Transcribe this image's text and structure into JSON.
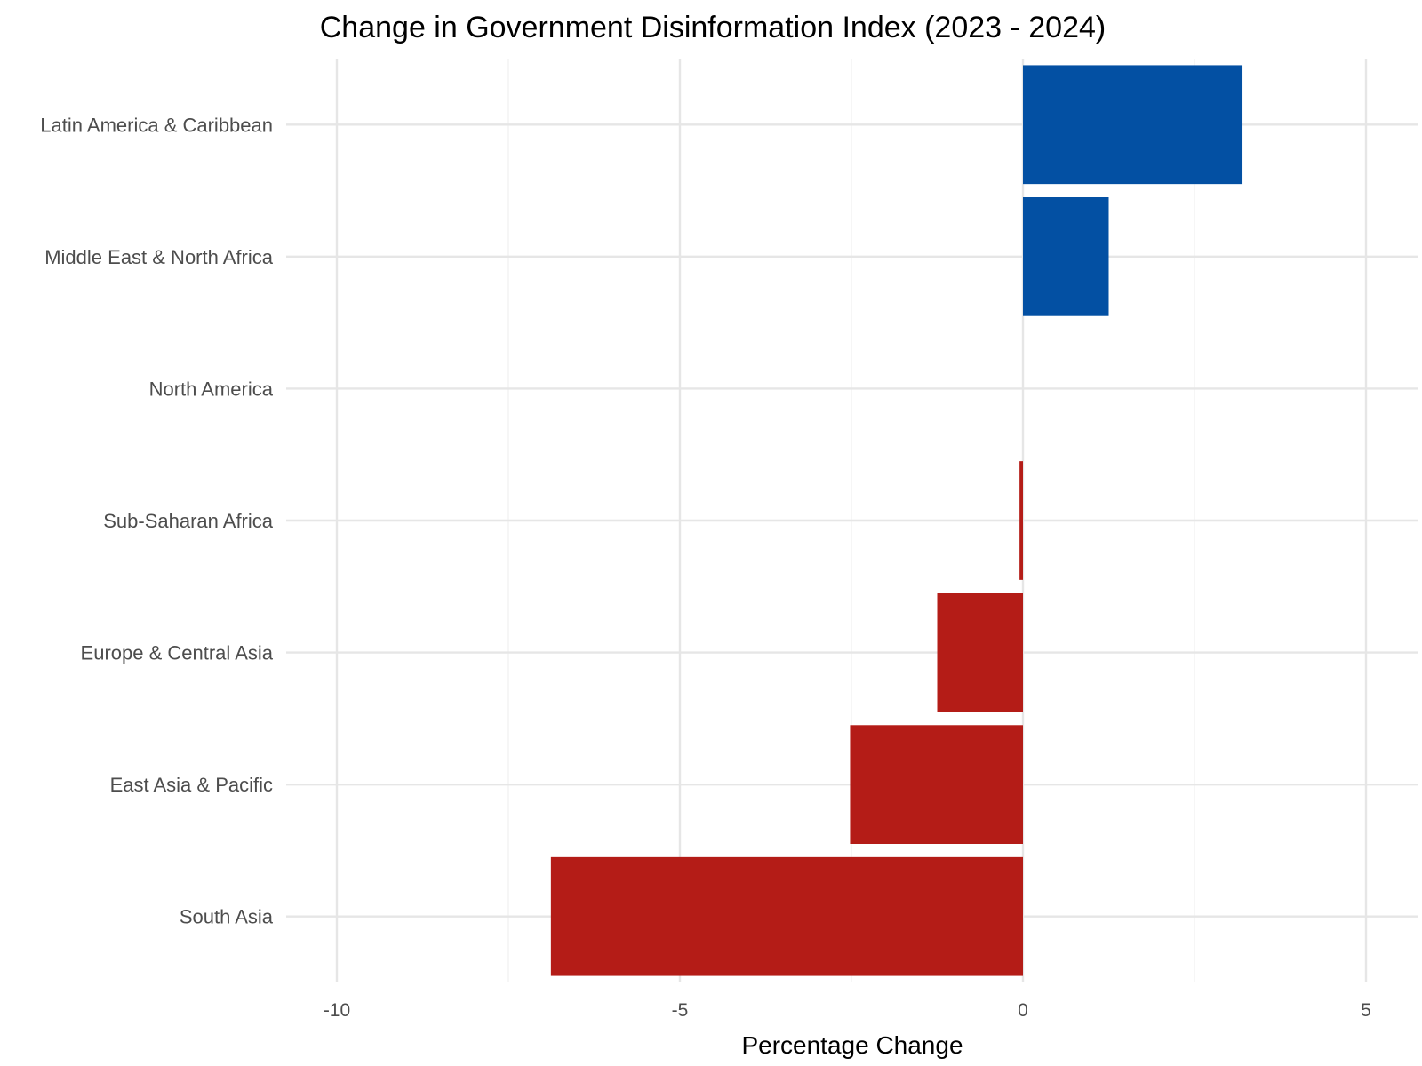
{
  "chart_data": {
    "type": "bar",
    "orientation": "horizontal",
    "title": "Change in Government Disinformation Index (2023 - 2024)",
    "xlabel": "Percentage Change",
    "ylabel": "",
    "xlim": [
      -10,
      5
    ],
    "xticks": [
      -10,
      -5,
      0,
      5
    ],
    "xtick_labels": [
      "-10",
      "-5",
      "0",
      "5"
    ],
    "categories": [
      "Latin America & Caribbean",
      "Middle East & North Africa",
      "North America",
      "Sub-Saharan Africa",
      "Europe & Central Asia",
      "East Asia & Pacific",
      "South Asia"
    ],
    "values": [
      3.2,
      1.25,
      0,
      -0.05,
      -1.25,
      -2.52,
      -6.88
    ],
    "colors": {
      "positive": "#0350a3",
      "negative": "#b41c17"
    },
    "grid": true,
    "legend": "none"
  }
}
